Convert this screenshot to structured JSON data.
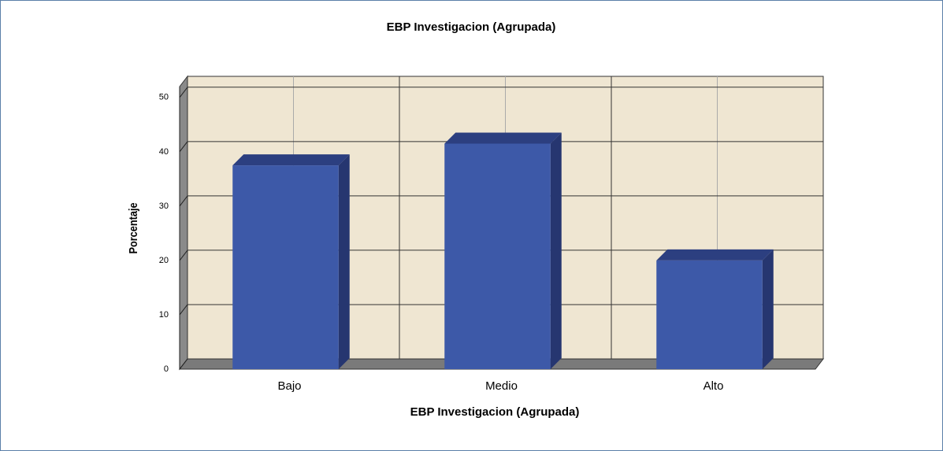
{
  "chart_data": {
    "type": "bar",
    "title": "EBP Investigacion (Agrupada)",
    "x_label": "EBP Investigacion (Agrupada)",
    "y_label": "Porcentaje",
    "categories": [
      "Bajo",
      "Medio",
      "Alto"
    ],
    "values": [
      37.5,
      41.5,
      20
    ],
    "color": "#3d59a8",
    "ylim": [
      0,
      52
    ],
    "yticks": [
      0,
      10,
      20,
      30,
      40,
      50
    ],
    "grid": true
  }
}
